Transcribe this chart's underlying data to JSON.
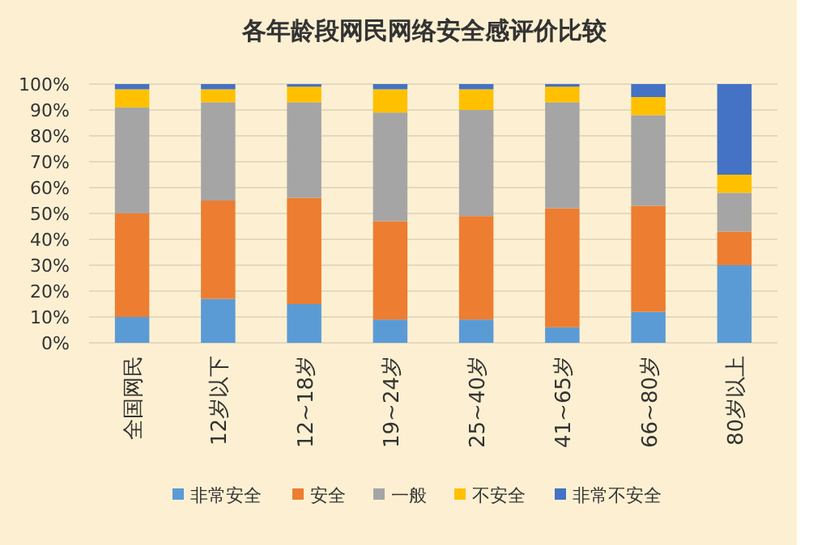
{
  "chart_data": {
    "type": "bar",
    "title": "各年龄段网民网络安全感评价比较",
    "stacked": true,
    "categories": [
      "全国网民",
      "12岁以下",
      "12~18岁",
      "19~24岁",
      "25~40岁",
      "41~65岁",
      "66~80岁",
      "80岁以上"
    ],
    "series": [
      {
        "name": "非常安全",
        "color": "#5b9bd5",
        "values": [
          10,
          17,
          15,
          9,
          9,
          6,
          12,
          30
        ]
      },
      {
        "name": "安全",
        "color": "#ed7d31",
        "values": [
          40,
          38,
          41,
          38,
          40,
          46,
          41,
          13
        ]
      },
      {
        "name": "一般",
        "color": "#a5a5a5",
        "values": [
          41,
          38,
          37,
          42,
          41,
          41,
          35,
          15
        ]
      },
      {
        "name": "不安全",
        "color": "#ffc000",
        "values": [
          7,
          5,
          6,
          9,
          8,
          6,
          7,
          7
        ]
      },
      {
        "name": "非常不安全",
        "color": "#4472c4",
        "values": [
          2,
          2,
          1,
          2,
          2,
          1,
          5,
          35
        ]
      }
    ],
    "ylim": [
      0,
      100
    ],
    "yticks": [
      {
        "value": 0,
        "label": "0%"
      },
      {
        "value": 10,
        "label": "10%"
      },
      {
        "value": 20,
        "label": "20%"
      },
      {
        "value": 30,
        "label": "30%"
      },
      {
        "value": 40,
        "label": "40%"
      },
      {
        "value": 50,
        "label": "50%"
      },
      {
        "value": 60,
        "label": "60%"
      },
      {
        "value": 70,
        "label": "70%"
      },
      {
        "value": 80,
        "label": "80%"
      },
      {
        "value": 90,
        "label": "90%"
      },
      {
        "value": 100,
        "label": "100%"
      }
    ],
    "grid": "y",
    "legend": "bottom"
  }
}
